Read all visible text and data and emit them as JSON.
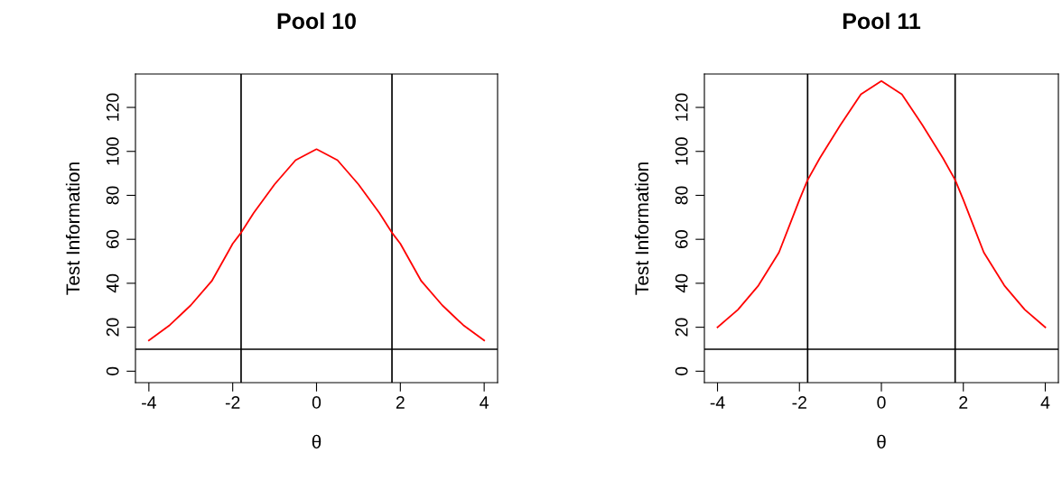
{
  "chart_data": [
    {
      "type": "line",
      "title": "Pool 10",
      "xlabel": "θ",
      "ylabel": "Test Information",
      "x": [
        -4,
        -3.5,
        -3,
        -2.5,
        -2,
        -1.8,
        -1.5,
        -1,
        -0.5,
        0,
        0.5,
        1,
        1.5,
        1.8,
        2,
        2.5,
        3,
        3.5,
        4
      ],
      "series": [
        {
          "color": "#ff0000",
          "values": [
            14,
            21,
            30,
            41,
            58,
            63,
            72,
            85,
            96,
            101,
            96,
            85,
            72,
            63,
            58,
            41,
            30,
            21,
            14
          ]
        }
      ],
      "xlim": [
        -4.32,
        4.32
      ],
      "ylim": [
        -5.2,
        135.2
      ],
      "xticks": [
        -4,
        -2,
        0,
        2,
        4
      ],
      "yticks": [
        0,
        20,
        40,
        60,
        80,
        100,
        120
      ],
      "ref_lines": [
        {
          "axis": "y",
          "value": 10,
          "color": "#000000"
        },
        {
          "axis": "x",
          "value": -1.8,
          "color": "#000000"
        },
        {
          "axis": "x",
          "value": 1.8,
          "color": "#000000"
        }
      ],
      "grid": false,
      "legend": false,
      "marker": "none",
      "line_style": "solid"
    },
    {
      "type": "line",
      "title": "Pool 11",
      "xlabel": "θ",
      "ylabel": "Test Information",
      "x": [
        -4,
        -3.5,
        -3,
        -2.5,
        -2,
        -1.8,
        -1.5,
        -1,
        -0.5,
        0,
        0.5,
        1,
        1.5,
        1.8,
        2,
        2.5,
        3,
        3.5,
        4
      ],
      "series": [
        {
          "color": "#ff0000",
          "values": [
            20,
            28,
            39,
            54,
            78,
            87,
            97,
            112,
            126,
            132,
            126,
            112,
            97,
            87,
            78,
            54,
            39,
            28,
            20
          ]
        }
      ],
      "xlim": [
        -4.32,
        4.32
      ],
      "ylim": [
        -5.2,
        135.2
      ],
      "xticks": [
        -4,
        -2,
        0,
        2,
        4
      ],
      "yticks": [
        0,
        20,
        40,
        60,
        80,
        100,
        120
      ],
      "ref_lines": [
        {
          "axis": "y",
          "value": 10,
          "color": "#000000"
        },
        {
          "axis": "x",
          "value": -1.8,
          "color": "#000000"
        },
        {
          "axis": "x",
          "value": 1.8,
          "color": "#000000"
        }
      ],
      "grid": false,
      "legend": false,
      "marker": "none",
      "line_style": "solid"
    }
  ]
}
